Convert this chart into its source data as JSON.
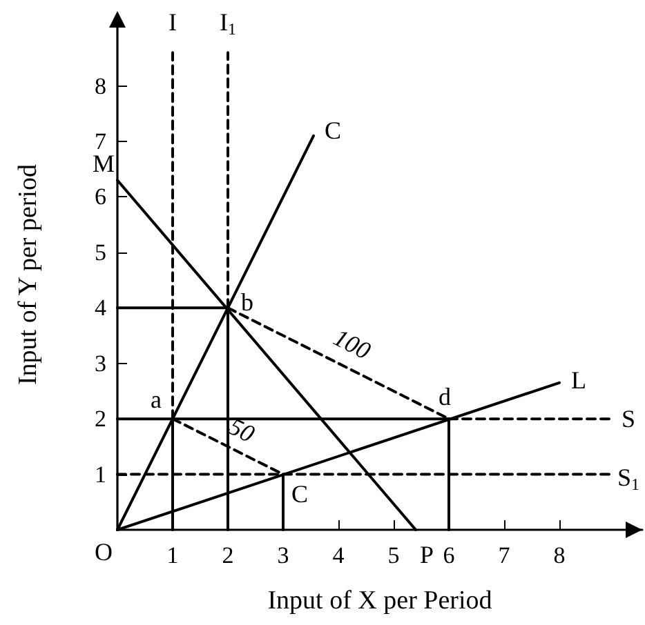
{
  "chart_data": {
    "type": "line",
    "xlabel": "Input of X per Period",
    "ylabel": "Input of Y per period",
    "xlim": [
      0,
      9.5
    ],
    "ylim": [
      0,
      9.2
    ],
    "xticks": [
      1,
      2,
      3,
      4,
      5,
      6,
      7,
      8
    ],
    "yticks": [
      1,
      2,
      3,
      4,
      5,
      6,
      7,
      8
    ],
    "grid": false,
    "marker": "none",
    "series": [
      {
        "color": "#000000",
        "line_style": "solid",
        "x": [
          0,
          3.55
        ],
        "values": [
          0,
          7.1
        ]
      },
      {
        "color": "#000000",
        "line_style": "solid",
        "x": [
          0,
          5.4
        ],
        "values": [
          6.3,
          0
        ]
      },
      {
        "color": "#000000",
        "line_style": "solid",
        "x": [
          0,
          8
        ],
        "values": [
          0,
          2.65
        ]
      },
      {
        "color": "#000000",
        "line_style": "dashed",
        "x": [
          2,
          6
        ],
        "values": [
          4,
          2
        ]
      },
      {
        "color": "#000000",
        "line_style": "dashed",
        "x": [
          1,
          3
        ],
        "values": [
          2,
          1
        ]
      },
      {
        "color": "#000000",
        "line_style": "solid",
        "x": [
          0,
          2
        ],
        "values": [
          4,
          4
        ]
      },
      {
        "color": "#000000",
        "line_style": "solid",
        "x": [
          2,
          2
        ],
        "values": [
          0,
          4
        ]
      },
      {
        "color": "#000000",
        "line_style": "solid",
        "x": [
          0,
          6
        ],
        "values": [
          2,
          2
        ]
      },
      {
        "color": "#000000",
        "line_style": "dashed",
        "x": [
          6,
          8.9
        ],
        "values": [
          2,
          2
        ]
      },
      {
        "color": "#000000",
        "line_style": "dashed",
        "x": [
          0,
          8.9
        ],
        "values": [
          1,
          1
        ]
      },
      {
        "color": "#000000",
        "line_style": "solid",
        "x": [
          1,
          1
        ],
        "values": [
          0,
          2
        ]
      },
      {
        "color": "#000000",
        "line_style": "solid",
        "x": [
          3,
          3
        ],
        "values": [
          0,
          1
        ]
      },
      {
        "color": "#000000",
        "line_style": "solid",
        "x": [
          6,
          6
        ],
        "values": [
          0,
          2
        ]
      },
      {
        "color": "#000000",
        "line_style": "dashed",
        "x": [
          1,
          1
        ],
        "values": [
          2,
          8.6
        ]
      },
      {
        "color": "#000000",
        "line_style": "dashed",
        "x": [
          2,
          2
        ],
        "values": [
          4,
          8.6
        ]
      }
    ],
    "annotations": [
      {
        "text": "O",
        "x": 0,
        "y": 0
      },
      {
        "text": "M",
        "x": 0,
        "y": 6.3
      },
      {
        "text": "P",
        "x": 5.4,
        "y": 0
      },
      {
        "text": "I",
        "x": 1,
        "y": 8.6
      },
      {
        "text": "I$_{1}$",
        "x": 2,
        "y": 8.6
      },
      {
        "text": "C",
        "x": 3.55,
        "y": 7.1
      },
      {
        "text": "a",
        "x": 1,
        "y": 2
      },
      {
        "text": "b",
        "x": 2,
        "y": 4
      },
      {
        "text": "d",
        "x": 6,
        "y": 2
      },
      {
        "text": "C",
        "x": 3,
        "y": 1
      },
      {
        "text": "L",
        "x": 8,
        "y": 2.65
      },
      {
        "text": "S",
        "x": 8.9,
        "y": 2
      },
      {
        "text": "S$_{1}$",
        "x": 8.9,
        "y": 1
      },
      {
        "text": "50",
        "x": 2,
        "y": 1.5
      },
      {
        "text": "100",
        "x": 4,
        "y": 3
      }
    ]
  }
}
